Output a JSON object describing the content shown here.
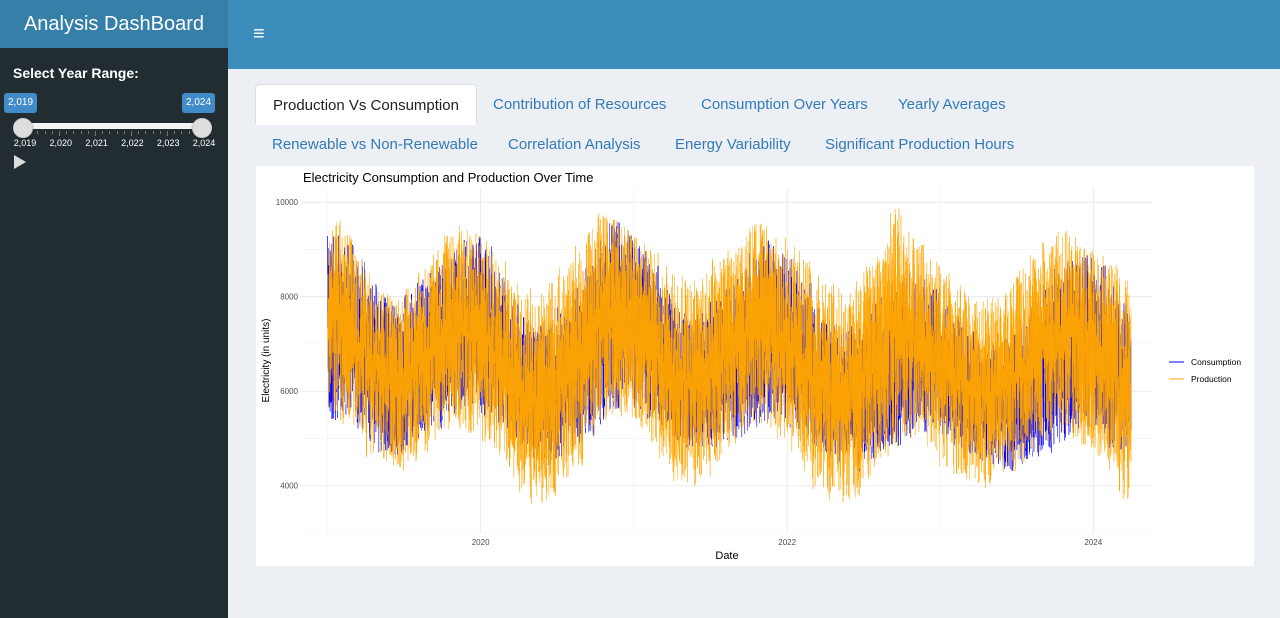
{
  "app": {
    "title": "Analysis DashBoard",
    "menu_icon": "hamburger-icon"
  },
  "sidebar": {
    "range_label": "Select Year Range:",
    "slider": {
      "min_value_label": "2,019",
      "max_value_label": "2,024",
      "min": 2019,
      "max": 2024,
      "selected_from": 2019,
      "selected_to": 2024,
      "tick_labels": [
        "2,019",
        "2,020",
        "2,021",
        "2,022",
        "2,023",
        "2,024"
      ]
    },
    "play_icon": "play-icon"
  },
  "tabs": [
    {
      "label": "Production Vs Consumption",
      "active": true
    },
    {
      "label": "Contribution of Resources",
      "active": false
    },
    {
      "label": "Consumption Over Years",
      "active": false
    },
    {
      "label": "Yearly Averages",
      "active": false
    },
    {
      "label": "Renewable vs Non-Renewable",
      "active": false
    },
    {
      "label": "Correlation Analysis",
      "active": false
    },
    {
      "label": "Energy Variability",
      "active": false
    },
    {
      "label": "Significant Production Hours",
      "active": false
    }
  ],
  "chart_data": {
    "type": "line",
    "title": "Electricity Consumption and Production Over Time",
    "xlabel": "Date",
    "ylabel": "Electricity (in units)",
    "x_range": [
      "2019-01-01",
      "2024-03-31"
    ],
    "x_ticks": [
      "2020",
      "2022",
      "2024"
    ],
    "ylim": [
      3000,
      10300
    ],
    "y_ticks": [
      4000,
      6000,
      8000,
      10000
    ],
    "grid": true,
    "legend_position": "right",
    "series": [
      {
        "name": "Consumption",
        "color": "#0000ff",
        "summary": "hourly values oscillating with a yearly cycle: peaks near 9000-9600 each winter, troughs near 4500-5000 each summer",
        "monthly_min": [
          5300,
          5500,
          5200,
          4900,
          4700,
          4600,
          4800,
          5000,
          5200,
          5400,
          5600,
          5600,
          5400,
          5300,
          5000,
          4800,
          4500,
          4400,
          4600,
          4800,
          5000,
          5300,
          5600,
          5800,
          5600,
          5400,
          5200,
          4900,
          4800,
          4700,
          4800,
          4900,
          5000,
          5200,
          5300,
          5400,
          5200,
          5000,
          4800,
          4600,
          4500,
          4300,
          4500,
          4700,
          4800,
          5000,
          5100,
          5300,
          5000,
          4800,
          4600,
          4500,
          4400,
          4300,
          4400,
          4600,
          4700,
          4900,
          5000,
          5200,
          5000,
          4800,
          4700
        ],
        "monthly_max": [
          9400,
          9200,
          8800,
          8300,
          8000,
          7900,
          8100,
          8400,
          8800,
          9000,
          9200,
          9300,
          9100,
          8600,
          8000,
          7600,
          7400,
          7500,
          7800,
          8200,
          8700,
          9200,
          9600,
          9500,
          9200,
          8700,
          8200,
          7800,
          7600,
          7700,
          8000,
          8300,
          8700,
          9000,
          9200,
          9100,
          8800,
          8300,
          7800,
          7500,
          7300,
          7400,
          7700,
          8000,
          8300,
          8500,
          8400,
          8200,
          7900,
          7600,
          7300,
          7100,
          7000,
          7200,
          7500,
          7900,
          8300,
          8600,
          8800,
          8900,
          8700,
          8300,
          7900
        ]
      },
      {
        "name": "Production",
        "color": "#ffa500",
        "summary": "hourly values with wider spread than consumption: ranges roughly 3300-9900, overlapping consumption throughout",
        "monthly_min": [
          5500,
          5300,
          5000,
          4600,
          4400,
          4300,
          4500,
          4700,
          4900,
          5100,
          5200,
          5100,
          4900,
          4600,
          4100,
          3600,
          3500,
          3700,
          4000,
          4400,
          4900,
          5300,
          5500,
          5400,
          5200,
          4900,
          4400,
          4000,
          3900,
          4100,
          4400,
          4800,
          5100,
          5300,
          5200,
          5000,
          4700,
          4300,
          3900,
          3600,
          3400,
          3700,
          4100,
          4500,
          4800,
          5000,
          4900,
          4700,
          4400,
          4200,
          4000,
          3900,
          4100,
          4300,
          4500,
          4700,
          4900,
          5100,
          5000,
          4800,
          4600,
          4200,
          3700
        ],
        "monthly_max": [
          9600,
          9300,
          8900,
          8500,
          8100,
          8000,
          8200,
          8600,
          9000,
          9300,
          9500,
          9400,
          9200,
          8800,
          8400,
          8200,
          8100,
          8300,
          8700,
          9100,
          9500,
          9800,
          9700,
          9500,
          9300,
          9000,
          8700,
          8500,
          8400,
          8500,
          8800,
          9100,
          9400,
          9600,
          9500,
          9300,
          9100,
          8800,
          8500,
          8300,
          8200,
          8400,
          8800,
          9200,
          9900,
          9500,
          9100,
          8800,
          8500,
          8300,
          8100,
          8000,
          8100,
          8300,
          8600,
          8900,
          9200,
          9400,
          9300,
          9100,
          8900,
          8700,
          8400
        ]
      }
    ]
  }
}
